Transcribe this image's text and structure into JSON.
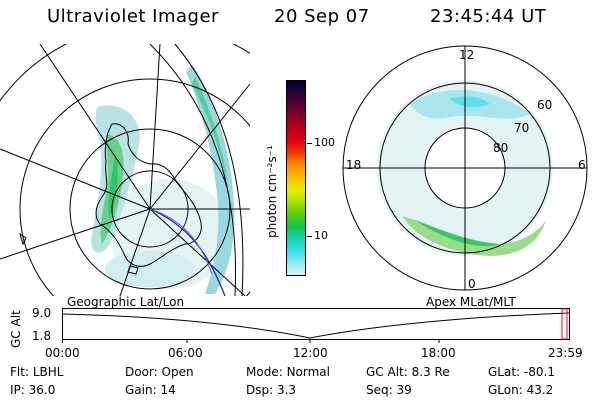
{
  "header": {
    "title": "Ultraviolet Imager",
    "date": "20 Sep 07",
    "time": "23:45:44 UT"
  },
  "colorbar": {
    "unit_label": "photon cm⁻²s⁻¹",
    "ticks": [
      "100",
      "10"
    ],
    "colors": [
      "#000033",
      "#2a0038",
      "#5a0032",
      "#8e0021",
      "#bf0010",
      "#e8001b",
      "#f04000",
      "#ff9000",
      "#ffc000",
      "#e8ef00",
      "#a8e000",
      "#58d010",
      "#10c850",
      "#18d5b0",
      "#30e0e8",
      "#90e8f0",
      "#d8f2f4"
    ]
  },
  "left_map": {
    "label": "Geographic Lat/Lon"
  },
  "right_map": {
    "label": "Apex MLat/MLT",
    "mlt_labels": {
      "top": "12",
      "left": "18",
      "right": "6",
      "bottom": "0"
    },
    "lat_labels": [
      "60",
      "70",
      "80"
    ]
  },
  "timeline": {
    "y_axis_label": "GC Alt",
    "y_ticks": [
      "9.0",
      "1.8"
    ],
    "x_ticks": [
      "00:00",
      "06:00",
      "12:00",
      "18:00",
      "23:59"
    ],
    "current_marker_color": "#ff0000"
  },
  "status": {
    "row1": [
      {
        "key": "Flt:",
        "value": "LBHL"
      },
      {
        "key": "Door:",
        "value": "Open"
      },
      {
        "key": "Mode:",
        "value": "Normal"
      },
      {
        "key": "GC Alt:",
        "value": "8.3 Re"
      },
      {
        "key": "GLat:",
        "value": "-80.1"
      }
    ],
    "row2": [
      {
        "key": "IP:",
        "value": "36.0"
      },
      {
        "key": "Gain:",
        "value": "14"
      },
      {
        "key": "Dsp:",
        "value": "3.3"
      },
      {
        "key": "Seq:",
        "value": "39"
      },
      {
        "key": "GLon:",
        "value": "43.2"
      }
    ]
  }
}
